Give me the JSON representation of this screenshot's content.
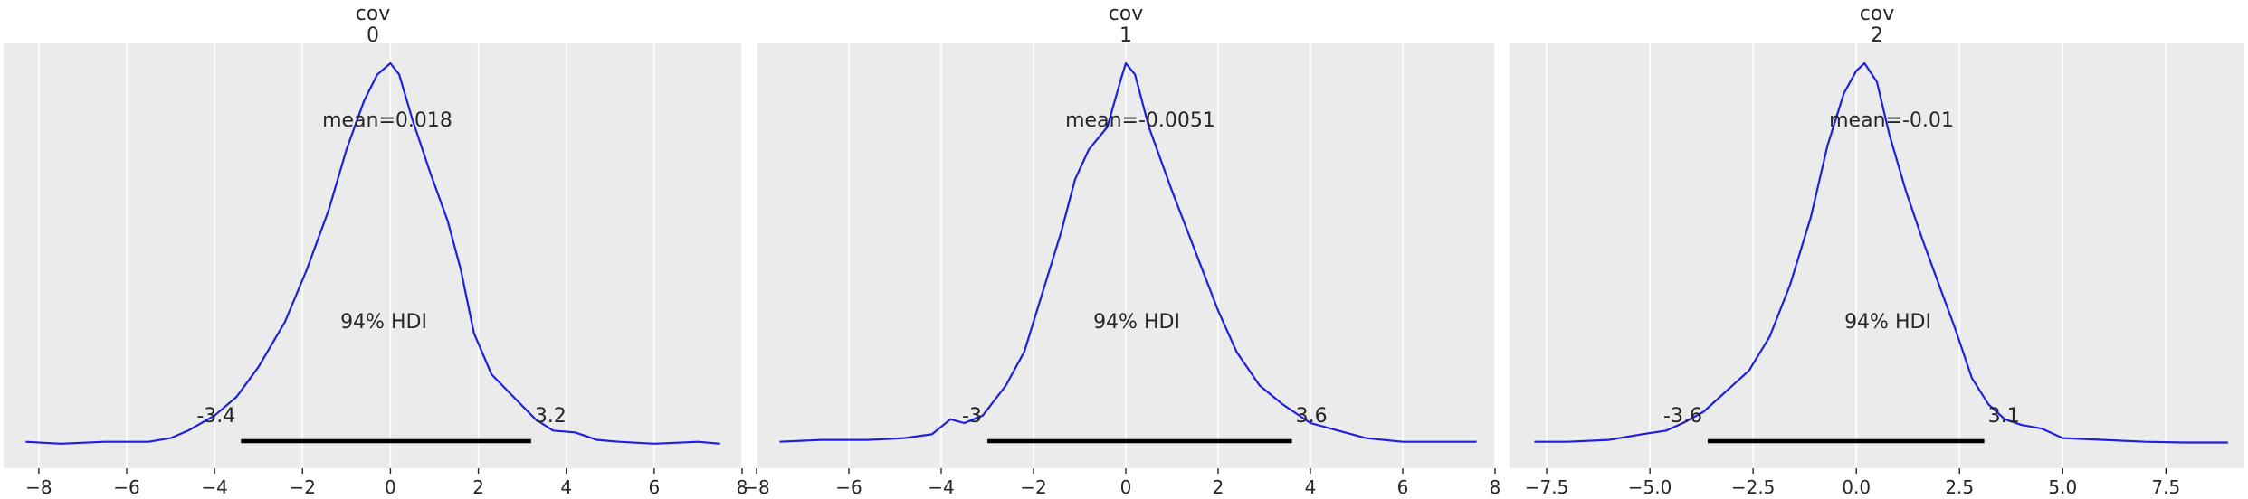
{
  "chart_data": [
    {
      "type": "density",
      "title": "cov\n0",
      "title_lines": [
        "cov",
        "0"
      ],
      "xlim": [
        -8.8,
        8.0
      ],
      "ylim": [
        0,
        1.1
      ],
      "xticks": [
        -8,
        -6,
        -4,
        -2,
        0,
        2,
        4,
        6,
        8
      ],
      "xtick_labels": [
        "−8",
        "−6",
        "−4",
        "−2",
        "0",
        "2",
        "4",
        "6",
        "8"
      ],
      "mean_label": "mean=0.018",
      "hdi_label": "94% HDI",
      "hdi": [
        -3.4,
        3.2
      ],
      "hdi_low_label": "-3.4",
      "hdi_high_label": "3.2",
      "curve": [
        [
          -8.3,
          0.02
        ],
        [
          -7.5,
          0.015
        ],
        [
          -6.5,
          0.02
        ],
        [
          -5.5,
          0.02
        ],
        [
          -5.0,
          0.03
        ],
        [
          -4.6,
          0.05
        ],
        [
          -4.0,
          0.09
        ],
        [
          -3.5,
          0.14
        ],
        [
          -3.0,
          0.22
        ],
        [
          -2.4,
          0.34
        ],
        [
          -1.9,
          0.48
        ],
        [
          -1.4,
          0.64
        ],
        [
          -1.0,
          0.8
        ],
        [
          -0.6,
          0.93
        ],
        [
          -0.3,
          1.0
        ],
        [
          0.0,
          1.03
        ],
        [
          0.2,
          1.0
        ],
        [
          0.5,
          0.88
        ],
        [
          0.9,
          0.74
        ],
        [
          1.3,
          0.61
        ],
        [
          1.6,
          0.48
        ],
        [
          1.9,
          0.31
        ],
        [
          2.3,
          0.2
        ],
        [
          2.8,
          0.14
        ],
        [
          3.3,
          0.08
        ],
        [
          3.7,
          0.05
        ],
        [
          4.2,
          0.045
        ],
        [
          4.7,
          0.025
        ],
        [
          5.2,
          0.02
        ],
        [
          6.0,
          0.015
        ],
        [
          7.0,
          0.02
        ],
        [
          7.5,
          0.015
        ]
      ],
      "curve_color": "#1f1fdd"
    },
    {
      "type": "density",
      "title": "cov\n1",
      "title_lines": [
        "cov",
        "1"
      ],
      "xlim": [
        -8.0,
        8.0
      ],
      "ylim": [
        0,
        1.1
      ],
      "xticks": [
        -8,
        -6,
        -4,
        -2,
        0,
        2,
        4,
        6,
        8
      ],
      "xtick_labels": [
        "−8",
        "−6",
        "−4",
        "−2",
        "0",
        "2",
        "4",
        "6",
        "8"
      ],
      "mean_label": "mean=-0.0051",
      "hdi_label": "94% HDI",
      "hdi": [
        -3.0,
        3.6
      ],
      "hdi_low_label": "-3",
      "hdi_high_label": "3.6",
      "curve": [
        [
          -7.5,
          0.02
        ],
        [
          -6.6,
          0.025
        ],
        [
          -5.6,
          0.025
        ],
        [
          -4.8,
          0.03
        ],
        [
          -4.2,
          0.04
        ],
        [
          -3.8,
          0.08
        ],
        [
          -3.5,
          0.07
        ],
        [
          -3.1,
          0.09
        ],
        [
          -2.6,
          0.17
        ],
        [
          -2.2,
          0.26
        ],
        [
          -1.8,
          0.42
        ],
        [
          -1.4,
          0.58
        ],
        [
          -1.1,
          0.72
        ],
        [
          -0.8,
          0.8
        ],
        [
          -0.4,
          0.86
        ],
        [
          -0.1,
          0.99
        ],
        [
          0.0,
          1.03
        ],
        [
          0.2,
          1.0
        ],
        [
          0.5,
          0.86
        ],
        [
          1.0,
          0.69
        ],
        [
          1.5,
          0.53
        ],
        [
          2.0,
          0.37
        ],
        [
          2.4,
          0.26
        ],
        [
          2.9,
          0.17
        ],
        [
          3.4,
          0.12
        ],
        [
          4.0,
          0.07
        ],
        [
          4.6,
          0.05
        ],
        [
          5.2,
          0.03
        ],
        [
          6.0,
          0.02
        ],
        [
          7.0,
          0.02
        ],
        [
          7.6,
          0.02
        ]
      ],
      "curve_color": "#1f1fdd"
    },
    {
      "type": "density",
      "title": "cov\n2",
      "title_lines": [
        "cov",
        "2"
      ],
      "xlim": [
        -8.4,
        9.4
      ],
      "ylim": [
        0,
        1.1
      ],
      "xticks": [
        -7.5,
        -5.0,
        -2.5,
        0.0,
        2.5,
        5.0,
        7.5
      ],
      "xtick_labels": [
        "−7.5",
        "−5.0",
        "−2.5",
        "0.0",
        "2.5",
        "5.0",
        "7.5"
      ],
      "mean_label": "mean=-0.01",
      "hdi_label": "94% HDI",
      "hdi": [
        -3.6,
        3.1
      ],
      "hdi_low_label": "-3.6",
      "hdi_high_label": "3.1",
      "curve": [
        [
          -7.8,
          0.02
        ],
        [
          -7.0,
          0.02
        ],
        [
          -6.0,
          0.025
        ],
        [
          -5.2,
          0.04
        ],
        [
          -4.6,
          0.05
        ],
        [
          -4.2,
          0.07
        ],
        [
          -3.7,
          0.1
        ],
        [
          -3.2,
          0.15
        ],
        [
          -2.6,
          0.21
        ],
        [
          -2.1,
          0.3
        ],
        [
          -1.6,
          0.44
        ],
        [
          -1.1,
          0.62
        ],
        [
          -0.7,
          0.81
        ],
        [
          -0.3,
          0.95
        ],
        [
          0.0,
          1.01
        ],
        [
          0.2,
          1.03
        ],
        [
          0.5,
          0.98
        ],
        [
          0.8,
          0.84
        ],
        [
          1.2,
          0.69
        ],
        [
          1.6,
          0.56
        ],
        [
          2.0,
          0.44
        ],
        [
          2.4,
          0.32
        ],
        [
          2.8,
          0.19
        ],
        [
          3.2,
          0.12
        ],
        [
          3.6,
          0.08
        ],
        [
          4.0,
          0.065
        ],
        [
          4.5,
          0.055
        ],
        [
          5.0,
          0.03
        ],
        [
          6.0,
          0.025
        ],
        [
          7.0,
          0.02
        ],
        [
          8.0,
          0.018
        ],
        [
          9.0,
          0.018
        ]
      ],
      "curve_color": "#1f1fdd"
    }
  ],
  "style": {
    "panel_bg": "#ebebeb",
    "grid_color": "#ffffff",
    "text_color": "#262626",
    "hdi_line_color": "#000000"
  }
}
